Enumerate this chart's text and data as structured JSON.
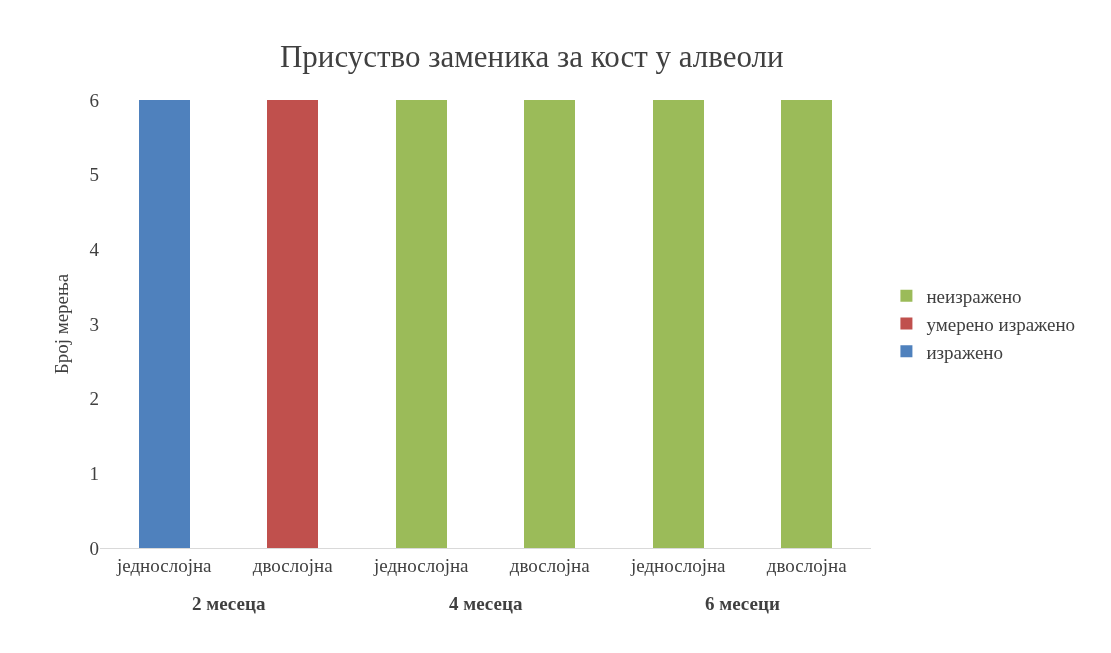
{
  "chart_data": {
    "type": "bar",
    "title": "Присуство заменика за кост у алвеоли",
    "ylabel": "Број мерења",
    "categories": [
      "једнослојна",
      "двослојна",
      "једнослојна",
      "двослојна",
      "једнослојна",
      "двослојна"
    ],
    "annotations": [
      "2 месеца",
      "4 месеца",
      "6 месеци"
    ],
    "stacked": true,
    "series": [
      {
        "name": "изражено",
        "color": "#4f81bd",
        "values": [
          6,
          0,
          0,
          0,
          0,
          0
        ]
      },
      {
        "name": "умерено изражено",
        "color": "#c0504d",
        "values": [
          0,
          6,
          0,
          0,
          0,
          0
        ]
      },
      {
        "name": "неизражено",
        "color": "#9bbb59",
        "values": [
          0,
          0,
          6,
          6,
          6,
          6
        ]
      }
    ],
    "ylim": [
      0,
      6
    ],
    "yticks": [
      0,
      1,
      2,
      3,
      4,
      5,
      6
    ],
    "legend": "right"
  }
}
